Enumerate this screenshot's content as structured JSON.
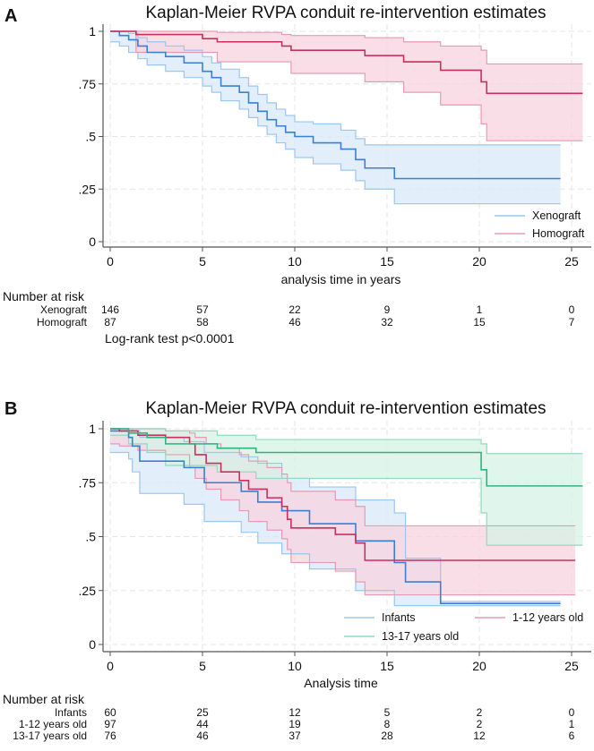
{
  "chart_data": [
    {
      "type": "line",
      "panel_label": "A",
      "title": "Kaplan-Meier RVPA conduit re-intervention estimates",
      "xlabel": "analysis time in years",
      "ylabel": "",
      "xlim": [
        0,
        25
      ],
      "ylim": [
        0,
        1
      ],
      "xticks": [
        0,
        5,
        10,
        15,
        20,
        25
      ],
      "xtick_labels": [
        "0",
        "5",
        "10",
        "15",
        "20",
        "25"
      ],
      "yticks": [
        0,
        0.25,
        0.5,
        0.75,
        1
      ],
      "ytick_labels": [
        "0",
        ".25",
        ".5",
        ".75",
        "1"
      ],
      "grid": true,
      "legend_placement": "bottom-right",
      "series": [
        {
          "name": "Xenograft",
          "color": "#3b7fd6",
          "ci_color": "#9cc6ef",
          "fill_color": "#d8e9f9",
          "times": [
            0,
            0.5,
            1,
            1.5,
            2,
            3,
            4,
            5,
            5.5,
            6,
            7,
            7.5,
            8,
            8.5,
            9,
            9.5,
            10,
            11,
            12.5,
            13.3,
            13.8,
            15.4
          ],
          "survival": [
            1,
            0.98,
            0.96,
            0.93,
            0.9,
            0.88,
            0.85,
            0.81,
            0.78,
            0.74,
            0.71,
            0.66,
            0.62,
            0.58,
            0.55,
            0.52,
            0.5,
            0.47,
            0.44,
            0.39,
            0.35,
            0.3
          ],
          "lower": [
            0.95,
            0.93,
            0.9,
            0.87,
            0.84,
            0.81,
            0.78,
            0.74,
            0.71,
            0.67,
            0.63,
            0.59,
            0.55,
            0.51,
            0.47,
            0.44,
            0.4,
            0.37,
            0.34,
            0.29,
            0.25,
            0.18
          ],
          "upper": [
            1,
            1,
            0.99,
            0.97,
            0.95,
            0.93,
            0.91,
            0.88,
            0.85,
            0.82,
            0.78,
            0.74,
            0.7,
            0.66,
            0.63,
            0.6,
            0.57,
            0.56,
            0.53,
            0.49,
            0.46,
            0.46
          ],
          "end_time": 24.4
        },
        {
          "name": "Homograft",
          "color": "#c8305e",
          "ci_color": "#e79bb3",
          "fill_color": "#f7d3df",
          "times": [
            0,
            1.4,
            5,
            5.8,
            9.3,
            9.8,
            13.8,
            15.9,
            17.9,
            20.1,
            20.4
          ],
          "survival": [
            1,
            0.985,
            0.965,
            0.95,
            0.93,
            0.91,
            0.885,
            0.855,
            0.815,
            0.76,
            0.705
          ],
          "lower": [
            1,
            0.9,
            0.9,
            0.855,
            0.855,
            0.8,
            0.76,
            0.71,
            0.65,
            0.56,
            0.48
          ],
          "upper": [
            1,
            1,
            1,
            0.995,
            0.985,
            0.98,
            0.97,
            0.95,
            0.93,
            0.91,
            0.845
          ],
          "end_time": 25.6
        }
      ],
      "risk_table": {
        "heading": "Number at risk",
        "rows": [
          {
            "label": "Xenograft",
            "values": [
              "146",
              "57",
              "22",
              "9",
              "1",
              "0"
            ]
          },
          {
            "label": "Homograft",
            "values": [
              "87",
              "58",
              "46",
              "32",
              "15",
              "7"
            ]
          }
        ]
      },
      "annotation": "Log-rank test p<0.0001"
    },
    {
      "type": "line",
      "panel_label": "B",
      "title": "Kaplan-Meier RVPA conduit re-intervention estimates",
      "xlabel": "Analysis time",
      "ylabel": "",
      "xlim": [
        0,
        25
      ],
      "ylim": [
        0,
        1
      ],
      "xticks": [
        0,
        5,
        10,
        15,
        20,
        25
      ],
      "xtick_labels": [
        "0",
        "5",
        "10",
        "15",
        "20",
        "25"
      ],
      "yticks": [
        0,
        0.25,
        0.5,
        0.75,
        1
      ],
      "ytick_labels": [
        "0",
        ".25",
        ".5",
        ".75",
        "1"
      ],
      "grid": true,
      "legend_placement": "bottom-right",
      "series": [
        {
          "name": "Infants",
          "color": "#3b7fd6",
          "ci_color": "#9cc6ef",
          "fill_color": "#d8e9f9",
          "times": [
            0,
            1,
            1.2,
            1.6,
            4,
            5.1,
            7.1,
            8,
            9.3,
            10.8,
            13.3,
            15.4,
            16,
            17.9
          ],
          "survival": [
            0.99,
            0.96,
            0.92,
            0.85,
            0.82,
            0.75,
            0.71,
            0.66,
            0.62,
            0.56,
            0.48,
            0.38,
            0.29,
            0.19
          ],
          "lower": [
            0.89,
            0.86,
            0.8,
            0.7,
            0.65,
            0.57,
            0.52,
            0.47,
            0.42,
            0.35,
            0.25,
            0.18,
            0.18,
            0.18
          ],
          "upper": [
            1,
            1,
            0.99,
            0.96,
            0.94,
            0.89,
            0.87,
            0.84,
            0.77,
            0.73,
            0.67,
            0.61,
            0.4,
            0.2
          ],
          "end_time": 24.4
        },
        {
          "name": "1-12 years old",
          "color": "#c8305e",
          "ci_color": "#e79bb3",
          "fill_color": "#f7d3df",
          "times": [
            0,
            0.5,
            1.5,
            3,
            4.3,
            4.6,
            5.2,
            6,
            7,
            7.5,
            8.5,
            9.3,
            9.6,
            9.8,
            12.2,
            13.3,
            13.8
          ],
          "survival": [
            1,
            0.99,
            0.97,
            0.96,
            0.93,
            0.88,
            0.84,
            0.8,
            0.76,
            0.72,
            0.68,
            0.64,
            0.58,
            0.54,
            0.51,
            0.47,
            0.39
          ],
          "lower": [
            0.93,
            0.92,
            0.9,
            0.88,
            0.82,
            0.77,
            0.72,
            0.67,
            0.62,
            0.57,
            0.53,
            0.49,
            0.44,
            0.38,
            0.34,
            0.29,
            0.23
          ],
          "upper": [
            1,
            1,
            1,
            0.99,
            0.98,
            0.96,
            0.93,
            0.91,
            0.88,
            0.85,
            0.82,
            0.79,
            0.75,
            0.71,
            0.67,
            0.64,
            0.55
          ],
          "end_time": 25.2
        },
        {
          "name": "13-17 years old",
          "color": "#2fb47e",
          "ci_color": "#8fdbbb",
          "fill_color": "#d5f2e5",
          "times": [
            0,
            1,
            2,
            3,
            5.8,
            7.9,
            20.1,
            20.4
          ],
          "survival": [
            1,
            0.98,
            0.96,
            0.93,
            0.91,
            0.89,
            0.81,
            0.735
          ],
          "lower": [
            0.97,
            0.93,
            0.89,
            0.83,
            0.8,
            0.77,
            0.61,
            0.46
          ],
          "upper": [
            1,
            1,
            1,
            0.99,
            0.97,
            0.95,
            0.93,
            0.885
          ],
          "end_time": 25.6
        }
      ],
      "risk_table": {
        "heading": "Number at risk",
        "rows": [
          {
            "label": "Infants",
            "values": [
              "60",
              "25",
              "12",
              "5",
              "2",
              "0"
            ]
          },
          {
            "label": "1-12 years old",
            "values": [
              "97",
              "44",
              "19",
              "8",
              "2",
              "1"
            ]
          },
          {
            "label": "13-17 years old",
            "values": [
              "76",
              "46",
              "37",
              "28",
              "12",
              "6"
            ]
          }
        ]
      }
    }
  ]
}
